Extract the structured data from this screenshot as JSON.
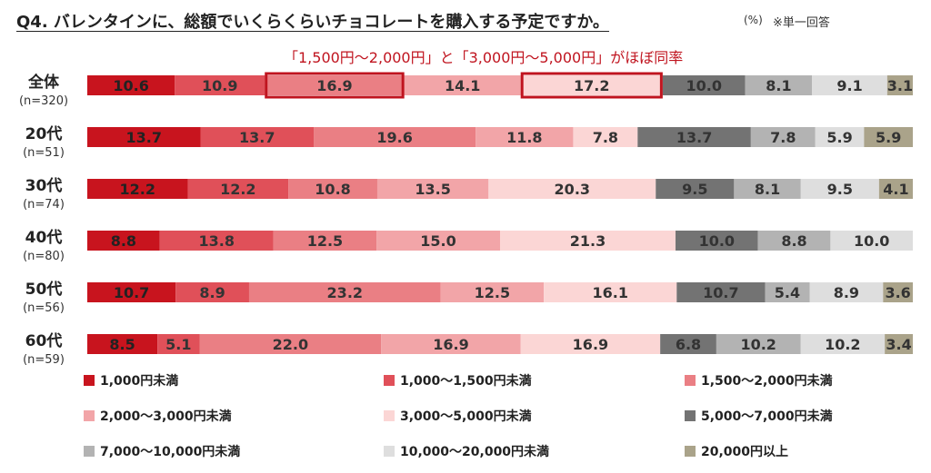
{
  "title": "Q4. バレンタインに、総額でいくらくらいチョコレートを購入する予定ですか。",
  "unit": "(%)",
  "note": "※単一回答",
  "callout": "「1,500円～2,000円」と「3,000円～5,000円」がほぼ同率",
  "colors": {
    "accent": "#c0141f",
    "series": [
      "#c8141e",
      "#e05059",
      "#ea7f84",
      "#f2a5a8",
      "#fbd6d5",
      "#737373",
      "#b3b3b3",
      "#dedede",
      "#aaa38a"
    ],
    "label_text": [
      "#222222",
      "#333333",
      "#333333",
      "#333333",
      "#333333",
      "#333333",
      "#333333",
      "#333333",
      "#333333"
    ]
  },
  "chart_data": {
    "type": "bar",
    "orientation": "horizontal-stacked",
    "categories": [
      {
        "label": "全体",
        "n": "(n=320)"
      },
      {
        "label": "20代",
        "n": "(n=51)"
      },
      {
        "label": "30代",
        "n": "(n=74)"
      },
      {
        "label": "40代",
        "n": "(n=80)"
      },
      {
        "label": "50代",
        "n": "(n=56)"
      },
      {
        "label": "60代",
        "n": "(n=59)"
      }
    ],
    "series": [
      {
        "name": "1,000円未満",
        "values": [
          10.6,
          13.7,
          12.2,
          8.8,
          10.7,
          8.5
        ]
      },
      {
        "name": "1,000～1,500円未満",
        "values": [
          10.9,
          13.7,
          12.2,
          13.8,
          8.9,
          5.1
        ]
      },
      {
        "name": "1,500～2,000円未満",
        "values": [
          16.9,
          19.6,
          10.8,
          12.5,
          23.2,
          22.0
        ]
      },
      {
        "name": "2,000～3,000円未満",
        "values": [
          14.1,
          11.8,
          13.5,
          15.0,
          12.5,
          16.9
        ]
      },
      {
        "name": "3,000～5,000円未満",
        "values": [
          17.2,
          7.8,
          20.3,
          21.3,
          16.1,
          16.9
        ]
      },
      {
        "name": "5,000～7,000円未満",
        "values": [
          10.0,
          13.7,
          9.5,
          10.0,
          10.7,
          6.8
        ]
      },
      {
        "name": "7,000～10,000円未満",
        "values": [
          8.1,
          7.8,
          8.1,
          8.8,
          5.4,
          10.2
        ]
      },
      {
        "name": "10,000～20,000円未満",
        "values": [
          9.1,
          5.9,
          9.5,
          10.0,
          8.9,
          10.2
        ]
      },
      {
        "name": "20,000円以上",
        "values": [
          3.1,
          5.9,
          4.1,
          0,
          3.6,
          3.4
        ]
      }
    ],
    "highlights": [
      {
        "category_index": 0,
        "series_index": 2
      },
      {
        "category_index": 0,
        "series_index": 4
      }
    ],
    "legend_position": "bottom",
    "xlim": [
      0,
      100
    ],
    "grid": false
  }
}
